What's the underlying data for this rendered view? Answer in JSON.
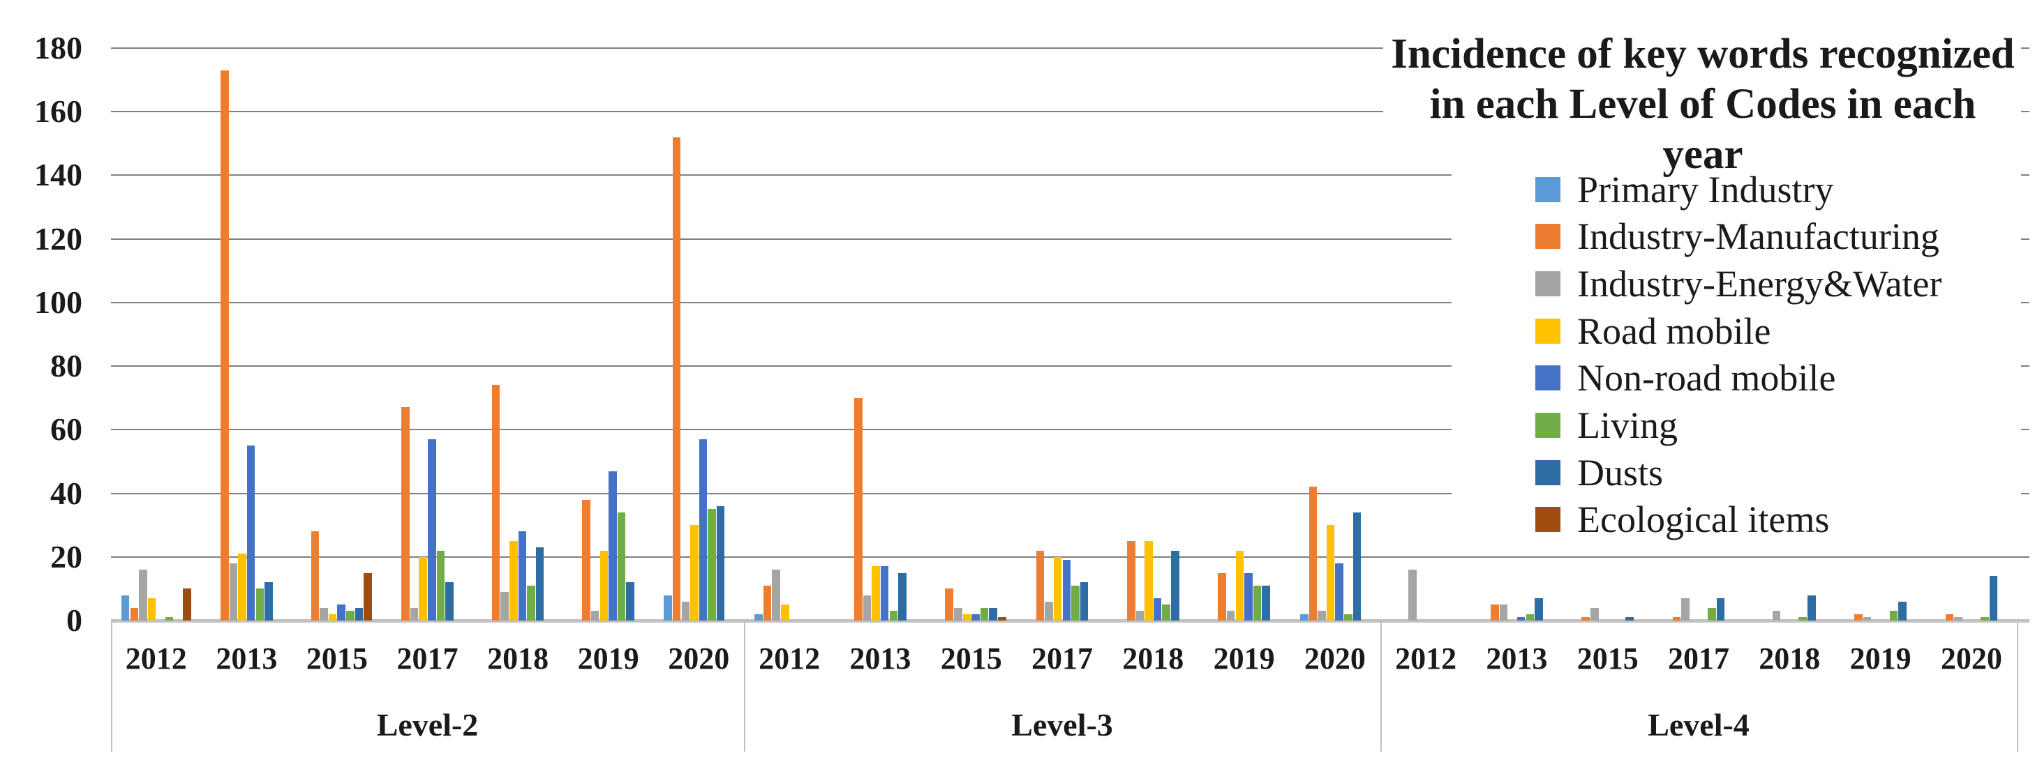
{
  "title": {
    "line1": "Incidence of key words recognized",
    "line2": "in each Level of Codes in each year"
  },
  "chart_data": {
    "type": "bar",
    "title": "Incidence of key words recognized in each Level of Codes in each year",
    "ylim": [
      0,
      180
    ],
    "ytick_step": 20,
    "ytick_labels": [
      "0",
      "20",
      "40",
      "60",
      "80",
      "100",
      "120",
      "140",
      "160",
      "180"
    ],
    "grid": "horizontal",
    "legend_position": "right",
    "series": [
      {
        "name": "Primary Industry",
        "color": "#5B9BD5"
      },
      {
        "name": "Industry-Manufacturing",
        "color": "#ED7D31"
      },
      {
        "name": "Industry-Energy&Water",
        "color": "#A5A5A5"
      },
      {
        "name": "Road mobile",
        "color": "#FFC000"
      },
      {
        "name": "Non-road mobile",
        "color": "#4472C4"
      },
      {
        "name": "Living",
        "color": "#70AD47"
      },
      {
        "name": "Dusts",
        "color": "#2E6DA4"
      },
      {
        "name": "Ecological items",
        "color": "#A04B10"
      }
    ],
    "levels": [
      {
        "label": "Level-2",
        "years": [
          "2012",
          "2013",
          "2015",
          "2017",
          "2018",
          "2019",
          "2020"
        ],
        "values": [
          [
            8,
            4,
            16,
            7,
            0,
            1,
            0,
            10
          ],
          [
            0,
            173,
            18,
            21,
            55,
            10,
            12,
            0
          ],
          [
            0,
            28,
            4,
            2,
            5,
            3,
            4,
            15
          ],
          [
            0,
            67,
            4,
            20,
            57,
            22,
            12,
            0
          ],
          [
            0,
            74,
            9,
            25,
            28,
            11,
            23,
            0
          ],
          [
            0,
            38,
            3,
            22,
            47,
            34,
            12,
            0
          ],
          [
            8,
            152,
            6,
            30,
            57,
            35,
            36,
            0
          ]
        ]
      },
      {
        "label": "Level-3",
        "years": [
          "2012",
          "2013",
          "2015",
          "2017",
          "2018",
          "2019",
          "2020"
        ],
        "values": [
          [
            2,
            11,
            16,
            5,
            0,
            0,
            0,
            0
          ],
          [
            0,
            70,
            8,
            17,
            17,
            3,
            15,
            0
          ],
          [
            0,
            10,
            4,
            2,
            2,
            4,
            4,
            1
          ],
          [
            0,
            22,
            6,
            20,
            19,
            11,
            12,
            0
          ],
          [
            0,
            25,
            3,
            25,
            7,
            5,
            22,
            0
          ],
          [
            0,
            15,
            3,
            22,
            15,
            11,
            11,
            0
          ],
          [
            2,
            42,
            3,
            30,
            18,
            2,
            34,
            0
          ]
        ]
      },
      {
        "label": "Level-4",
        "years": [
          "2012",
          "2013",
          "2015",
          "2017",
          "2018",
          "2019",
          "2020"
        ],
        "values": [
          [
            0,
            0,
            16,
            0,
            0,
            0,
            0,
            0
          ],
          [
            0,
            5,
            5,
            0,
            1,
            2,
            7,
            0
          ],
          [
            0,
            1,
            4,
            0,
            0,
            0,
            1,
            0
          ],
          [
            0,
            1,
            7,
            0,
            0,
            4,
            7,
            0
          ],
          [
            0,
            0,
            3,
            0,
            0,
            1,
            8,
            0
          ],
          [
            0,
            2,
            1,
            0,
            0,
            3,
            6,
            0
          ],
          [
            0,
            2,
            1,
            0,
            0,
            1,
            14,
            0
          ]
        ]
      }
    ]
  }
}
